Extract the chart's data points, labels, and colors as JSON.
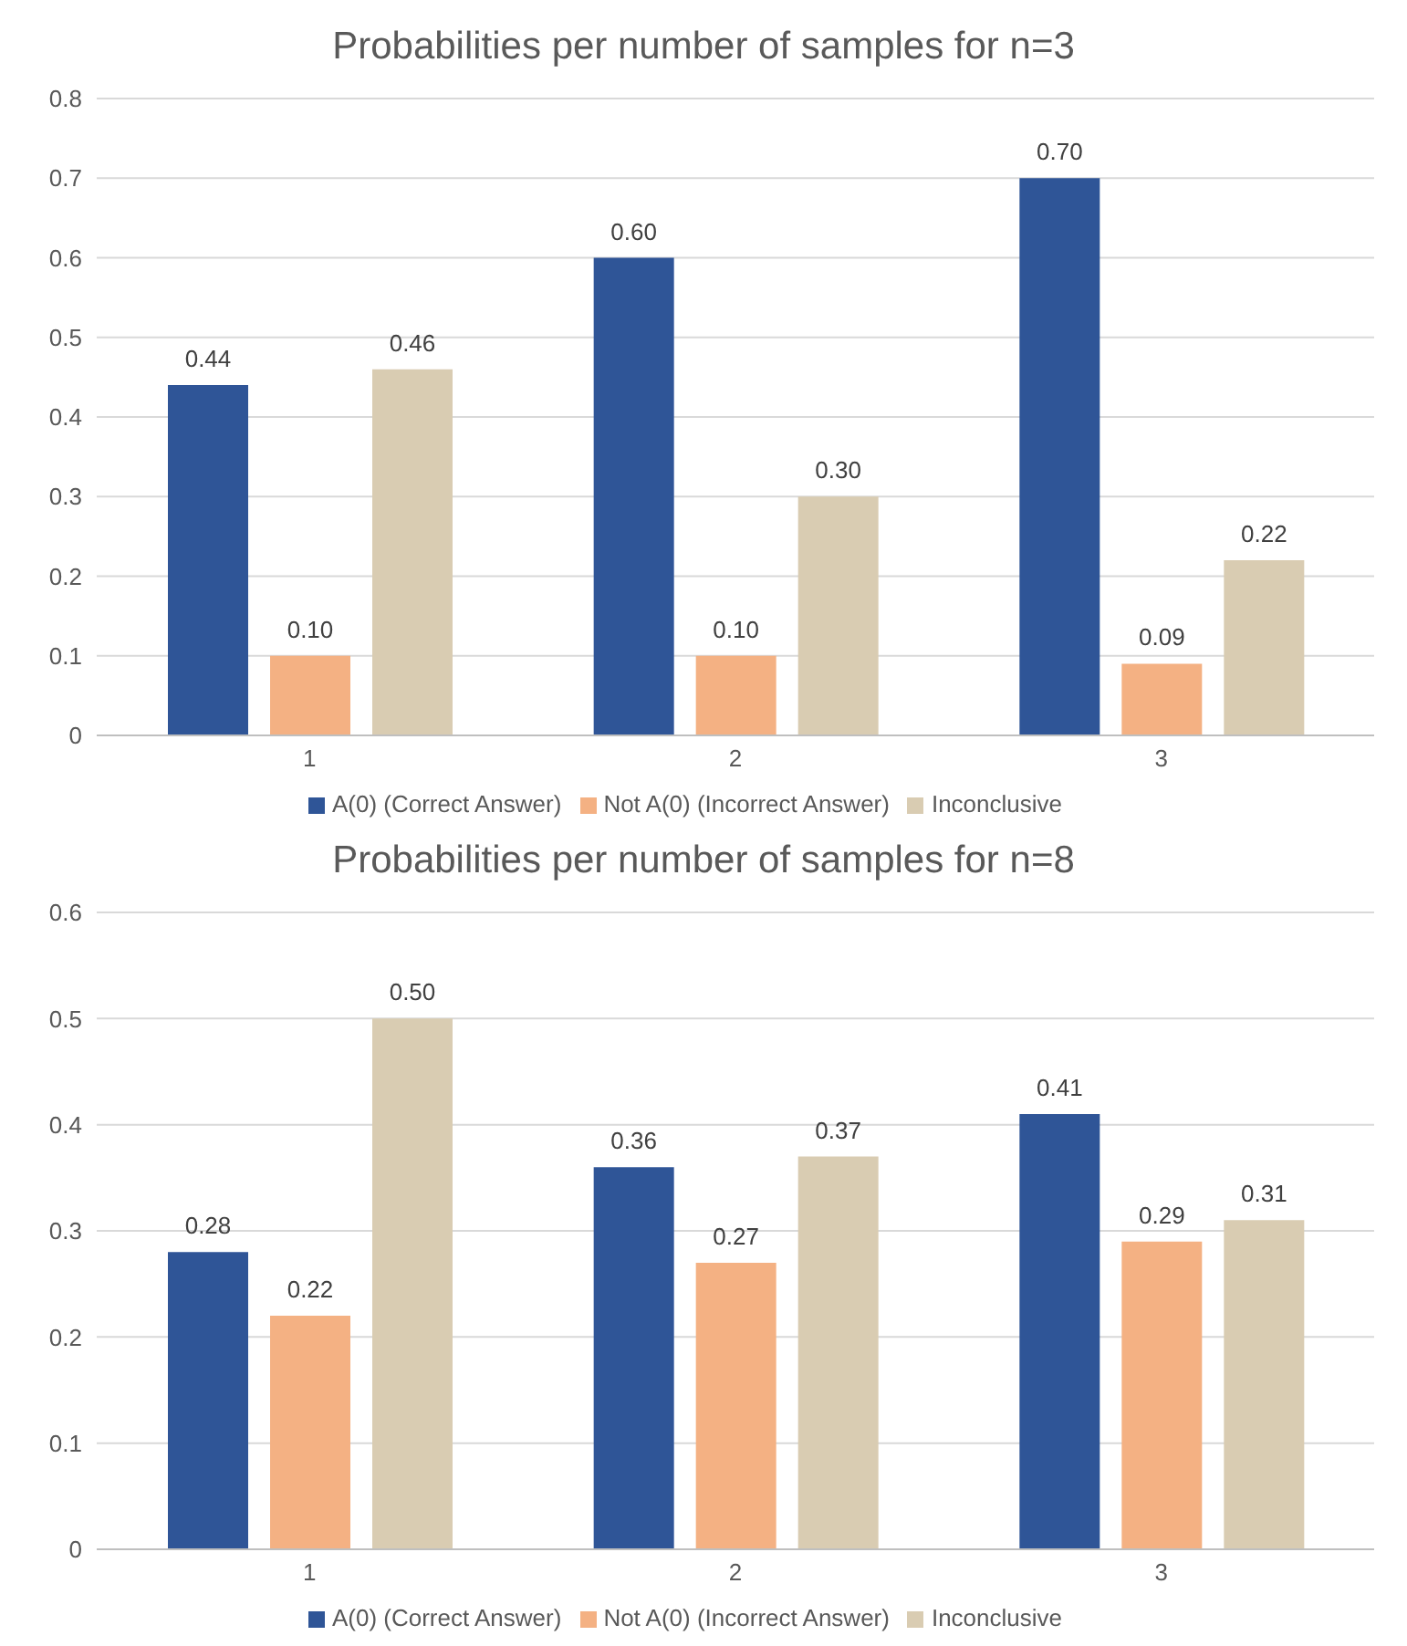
{
  "chart_data": [
    {
      "type": "bar",
      "title": "Probabilities per number of samples for n=3",
      "categories": [
        "1",
        "2",
        "3"
      ],
      "series": [
        {
          "name": "A(0) (Correct Answer)",
          "color": "#2f5597",
          "values": [
            0.44,
            0.6,
            0.7
          ],
          "value_labels": [
            "0.44",
            "0.60",
            "0.70"
          ]
        },
        {
          "name": "Not A(0) (Incorrect Answer)",
          "color": "#f4b183",
          "values": [
            0.1,
            0.1,
            0.09
          ],
          "value_labels": [
            "0.10",
            "0.10",
            "0.09"
          ]
        },
        {
          "name": "Inconclusive",
          "color": "#d9ccb2",
          "values": [
            0.46,
            0.3,
            0.22
          ],
          "value_labels": [
            "0.46",
            "0.30",
            "0.22"
          ]
        }
      ],
      "ylim": [
        0,
        0.8
      ],
      "yticks": [
        0,
        0.1,
        0.2,
        0.3,
        0.4,
        0.5,
        0.6,
        0.7,
        0.8
      ],
      "grid": "y",
      "legend": "bottom"
    },
    {
      "type": "bar",
      "title": "Probabilities per number of samples for n=8",
      "categories": [
        "1",
        "2",
        "3"
      ],
      "series": [
        {
          "name": "A(0) (Correct Answer)",
          "color": "#2f5597",
          "values": [
            0.28,
            0.36,
            0.41
          ],
          "value_labels": [
            "0.28",
            "0.36",
            "0.41"
          ]
        },
        {
          "name": "Not A(0) (Incorrect Answer)",
          "color": "#f4b183",
          "values": [
            0.22,
            0.27,
            0.29
          ],
          "value_labels": [
            "0.22",
            "0.27",
            "0.29"
          ]
        },
        {
          "name": "Inconclusive",
          "color": "#d9ccb2",
          "values": [
            0.5,
            0.37,
            0.31
          ],
          "value_labels": [
            "0.50",
            "0.37",
            "0.31"
          ]
        }
      ],
      "ylim": [
        0,
        0.6
      ],
      "yticks": [
        0,
        0.1,
        0.2,
        0.3,
        0.4,
        0.5,
        0.6
      ],
      "grid": "y",
      "legend": "bottom"
    }
  ]
}
